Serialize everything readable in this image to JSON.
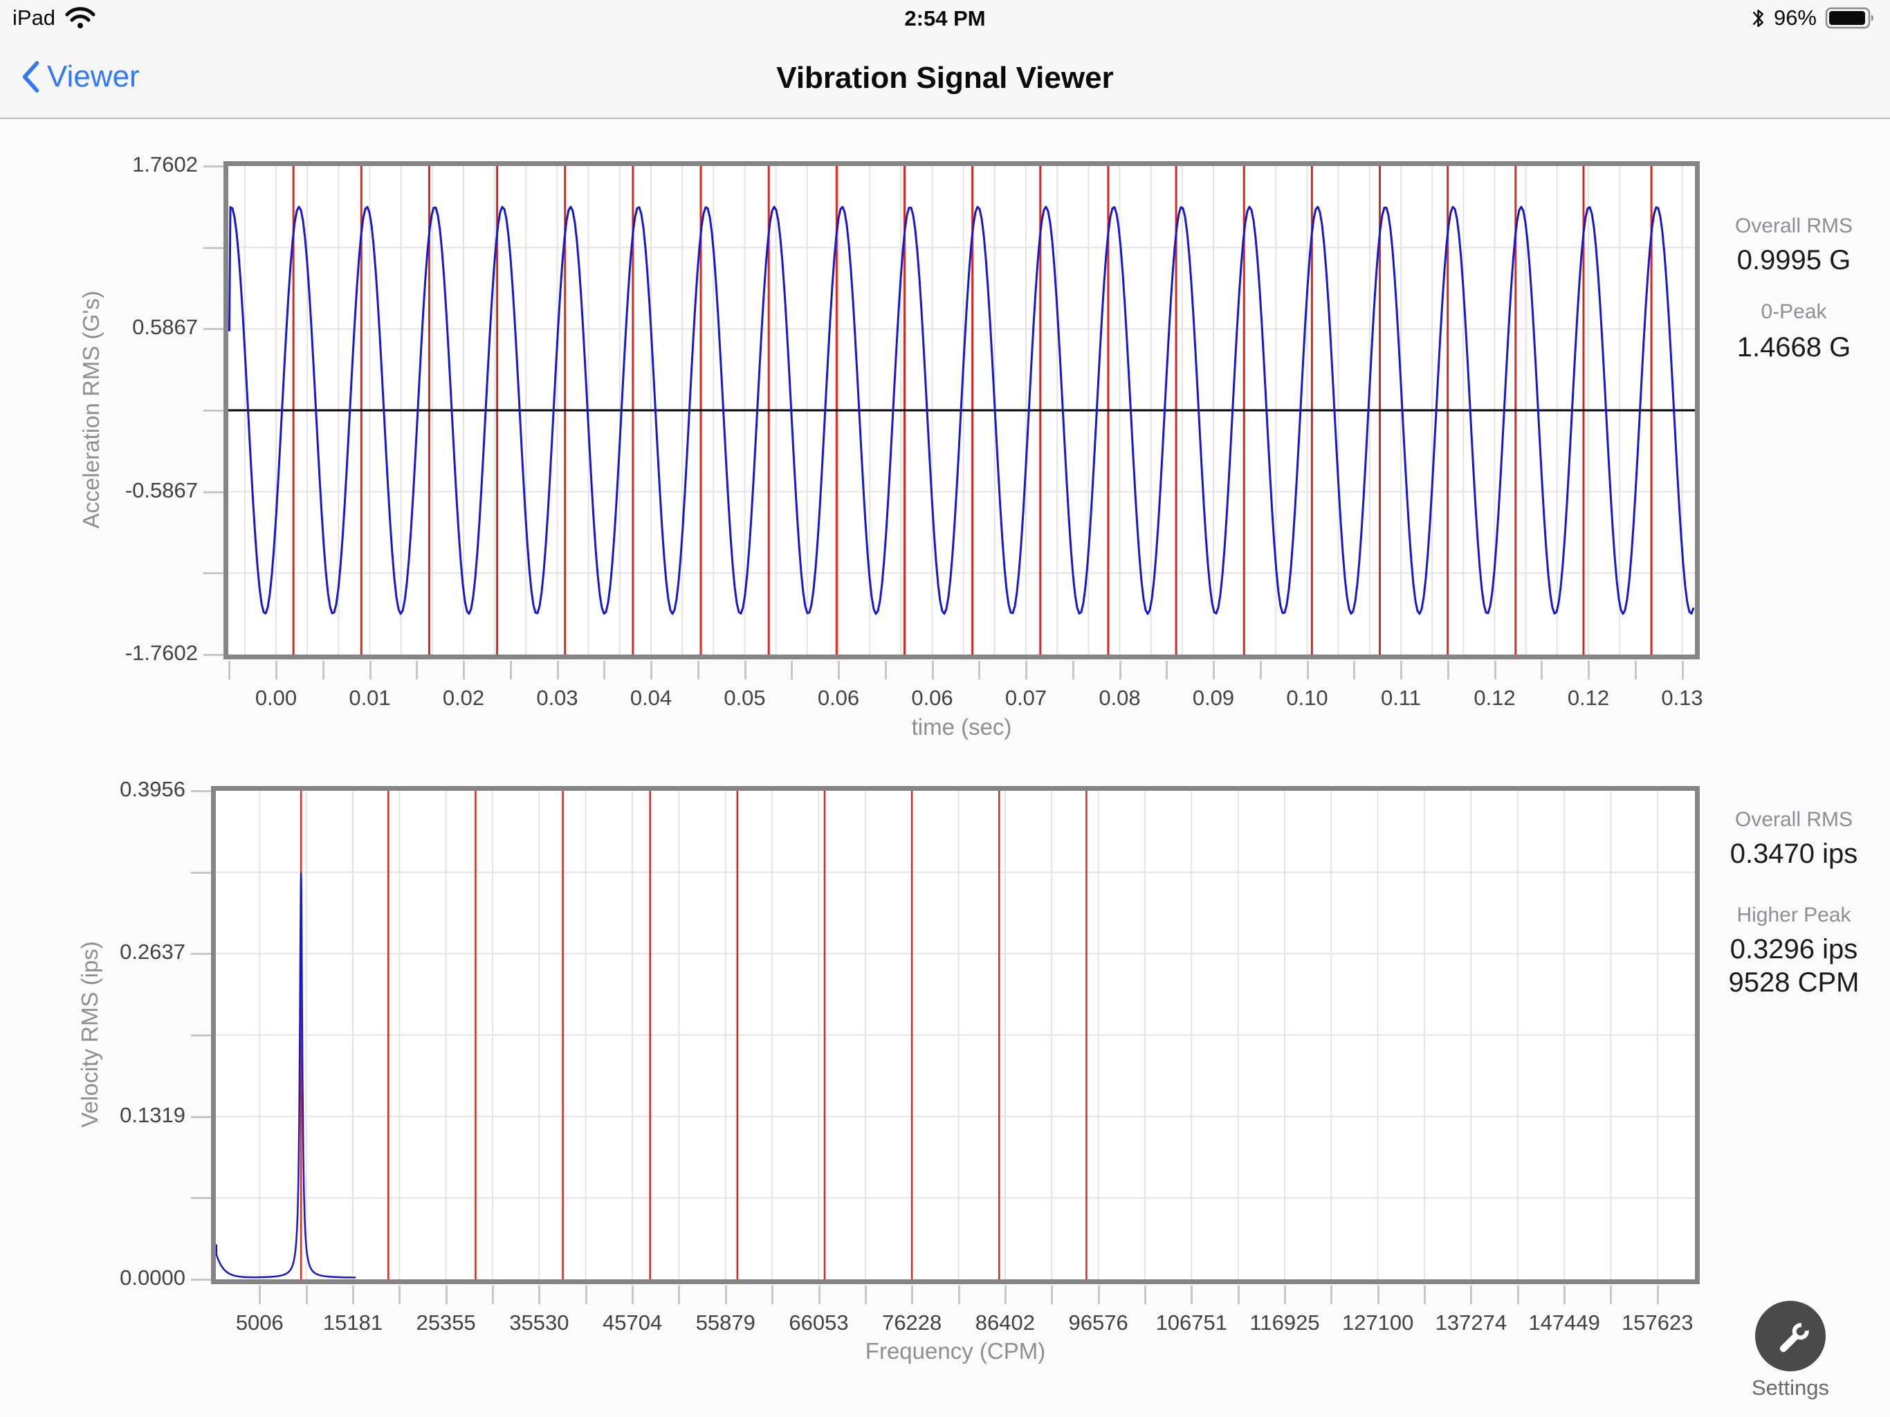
{
  "status_bar": {
    "carrier": "iPad",
    "time": "2:54 PM",
    "battery_percent": "96%"
  },
  "nav": {
    "back_label": "Viewer",
    "title": "Vibration Signal Viewer"
  },
  "chart_data": [
    {
      "id": "acceleration-waveform",
      "type": "line",
      "xlabel": "time (sec)",
      "ylabel": "Acceleration RMS (G's)",
      "x_tick_labels": [
        "0.00",
        "0.01",
        "0.02",
        "0.03",
        "0.04",
        "0.05",
        "0.06",
        "0.06",
        "0.07",
        "0.08",
        "0.09",
        "0.10",
        "0.11",
        "0.12",
        "0.12",
        "0.13"
      ],
      "y_tick_labels": [
        "1.7602",
        "0.5867",
        "-0.5867",
        "-1.7602"
      ],
      "ylim": [
        -1.7602,
        1.7602
      ],
      "xlim_sec": [
        0,
        0.1333
      ],
      "series": [
        {
          "name": "acceleration",
          "color": "#1717cb",
          "shape": "sine",
          "amplitude_g": 1.4668,
          "rms_g": 0.9995,
          "cycles_visible": 21.6,
          "start_phase": "peak at left edge",
          "start_transient_g": 0.57
        }
      ],
      "zero_line_color": "#000000",
      "period_markers": {
        "color": "#d42a22",
        "count": 21,
        "note": "one marker per revolution, just before each peak"
      },
      "grid": true
    },
    {
      "id": "velocity-spectrum",
      "type": "line",
      "xlabel": "Frequency (CPM)",
      "ylabel": "Velocity RMS (ips)",
      "x_tick_labels": [
        "5006",
        "15181",
        "25355",
        "35530",
        "45704",
        "55879",
        "66053",
        "76228",
        "86402",
        "96576",
        "106751",
        "116925",
        "127100",
        "137274",
        "147449",
        "157623"
      ],
      "x_tick_values_cpm": [
        5006,
        15181,
        25355,
        35530,
        45704,
        55879,
        66053,
        76228,
        86402,
        96576,
        106751,
        116925,
        127100,
        137274,
        147449,
        157623
      ],
      "y_tick_labels": [
        "0.3956",
        "0.2637",
        "0.1319",
        "0.0000"
      ],
      "ylim": [
        0,
        0.3956
      ],
      "xlim_cpm": [
        -230,
        161700
      ],
      "series": [
        {
          "name": "velocity",
          "color": "#1717cb",
          "peak_cpm": 9528,
          "peak_ips": 0.3296,
          "noise_floor_ips": 0.0012,
          "low_freq_start_ips": 0.027,
          "peak_halfwidth_cpm": 165
        }
      ],
      "harmonic_markers": {
        "color": "#d42a22",
        "base_cpm": 9528,
        "count": 10
      },
      "grid": true
    }
  ],
  "waveform_stats": {
    "rms_label": "Overall RMS",
    "rms_value": "0.9995 G",
    "peak_label": "0-Peak",
    "peak_value": "1.4668 G"
  },
  "spectrum_stats": {
    "rms_label": "Overall RMS",
    "rms_value": "0.3470 ips",
    "peak_label": "Higher Peak",
    "peak_value": "0.3296 ips",
    "peak_freq": "9528 CPM"
  },
  "settings": {
    "label": "Settings",
    "icon": "wrench-icon"
  }
}
